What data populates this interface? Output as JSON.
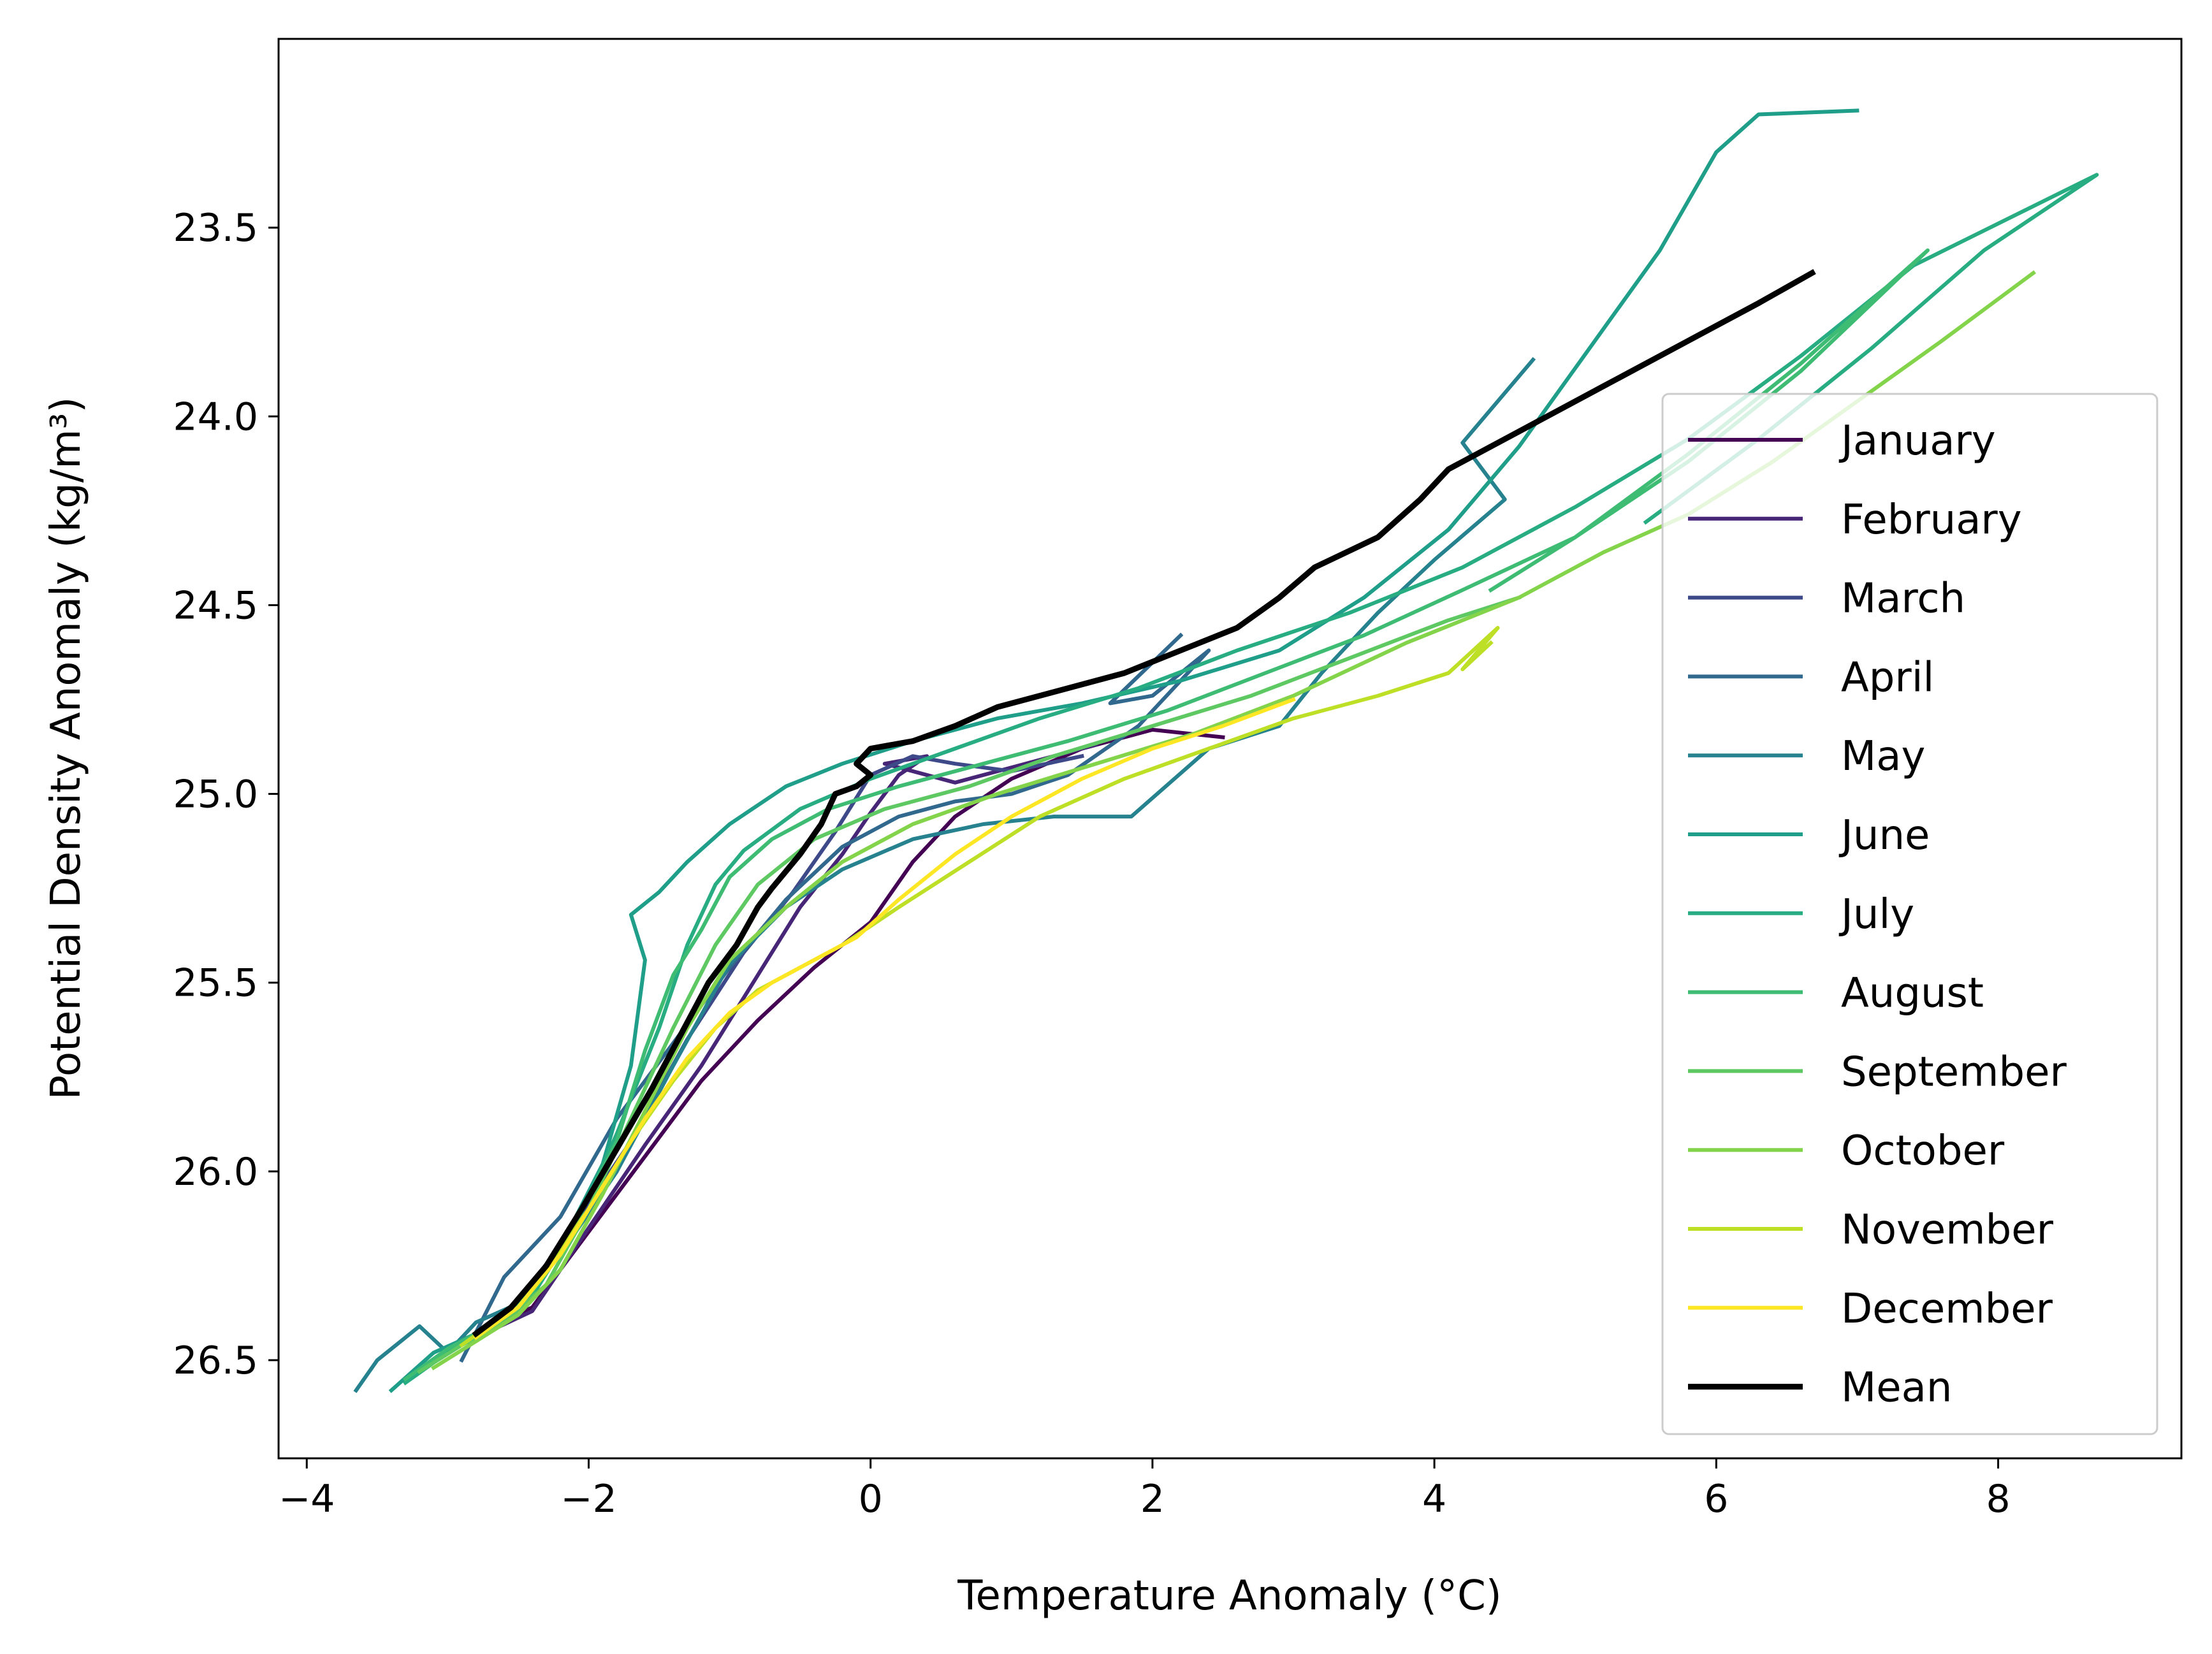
{
  "chart_data": {
    "type": "line",
    "title": "",
    "xlabel": "Temperature Anomaly (°C)",
    "ylabel": "Potential Density Anomaly (kg/m³)",
    "xlim": [
      -4.2,
      9.3
    ],
    "ylim": [
      26.76,
      23.0
    ],
    "y_inverted": true,
    "grid": false,
    "legend_position": "lower right",
    "x_ticks": [
      -4,
      -2,
      0,
      2,
      4,
      6,
      8
    ],
    "x_tick_labels": [
      "−4",
      "−2",
      "0",
      "2",
      "4",
      "6",
      "8"
    ],
    "y_ticks": [
      23.5,
      24.0,
      24.5,
      25.0,
      25.5,
      26.0,
      26.5
    ],
    "y_tick_labels": [
      "23.5",
      "24.0",
      "24.5",
      "25.0",
      "25.5",
      "26.0",
      "26.5"
    ],
    "series": [
      {
        "name": "January",
        "color": "#440154",
        "x": [
          -2.8,
          -2.4,
          -2.0,
          -1.6,
          -1.2,
          -0.8,
          -0.4,
          0.0,
          0.3,
          0.6,
          1.0,
          1.5,
          2.0,
          2.5
        ],
        "y": [
          26.43,
          26.36,
          26.16,
          25.96,
          25.76,
          25.6,
          25.46,
          25.34,
          25.18,
          25.06,
          24.96,
          24.88,
          24.83,
          24.85
        ]
      },
      {
        "name": "February",
        "color": "#482677",
        "x": [
          -2.8,
          -2.4,
          -2.0,
          -1.6,
          -1.2,
          -0.8,
          -0.5,
          -0.2,
          0.0,
          0.2,
          0.4,
          0.1,
          0.6,
          1.0,
          1.6
        ],
        "y": [
          26.44,
          26.37,
          26.15,
          25.93,
          25.72,
          25.48,
          25.3,
          25.16,
          25.05,
          24.95,
          24.9,
          24.92,
          24.97,
          24.93,
          24.87
        ]
      },
      {
        "name": "March",
        "color": "#3e4989",
        "x": [
          -2.85,
          -2.5,
          -2.1,
          -1.7,
          -1.3,
          -0.9,
          -0.55,
          -0.25,
          0.0,
          0.3,
          0.6,
          1.0,
          1.5
        ],
        "y": [
          26.45,
          26.35,
          26.14,
          25.92,
          25.65,
          25.42,
          25.26,
          25.1,
          24.95,
          24.9,
          24.92,
          24.94,
          24.9
        ]
      },
      {
        "name": "April",
        "color": "#31688e",
        "x": [
          -2.9,
          -2.6,
          -2.2,
          -1.8,
          -1.4,
          -1.0,
          -0.6,
          -0.2,
          0.2,
          0.6,
          1.0,
          1.4,
          1.9,
          2.4,
          2.0,
          1.7,
          2.2
        ],
        "y": [
          26.5,
          26.28,
          26.12,
          25.86,
          25.66,
          25.46,
          25.28,
          25.14,
          25.06,
          25.02,
          25.0,
          24.95,
          24.82,
          24.62,
          24.74,
          24.76,
          24.58
        ]
      },
      {
        "name": "May",
        "color": "#26828e",
        "x": [
          -3.65,
          -3.5,
          -3.2,
          -3.0,
          -2.8,
          -2.5,
          -2.2,
          -1.8,
          -1.4,
          -1.0,
          -0.6,
          -0.2,
          0.3,
          0.8,
          1.3,
          1.85,
          2.4,
          2.9,
          3.2,
          3.6,
          4.0,
          4.5,
          4.2,
          4.7
        ],
        "y": [
          26.58,
          26.5,
          26.41,
          26.48,
          26.4,
          26.35,
          26.22,
          26.0,
          25.72,
          25.45,
          25.3,
          25.2,
          25.12,
          25.08,
          25.06,
          25.06,
          24.88,
          24.82,
          24.68,
          24.52,
          24.38,
          24.22,
          24.07,
          23.85
        ]
      },
      {
        "name": "June",
        "color": "#1f9e89",
        "x": [
          -3.4,
          -3.1,
          -2.8,
          -2.5,
          -2.2,
          -1.9,
          -1.7,
          -1.6,
          -1.7,
          -1.5,
          -1.3,
          -1.0,
          -0.6,
          -0.2,
          0.3,
          0.9,
          1.5,
          2.2,
          2.9,
          3.5,
          4.1,
          4.6,
          5.1,
          5.6,
          6.0,
          6.3,
          7.0
        ],
        "y": [
          26.58,
          26.48,
          26.43,
          26.36,
          26.2,
          25.98,
          25.72,
          25.44,
          25.32,
          25.26,
          25.18,
          25.08,
          24.98,
          24.92,
          24.86,
          24.8,
          24.76,
          24.7,
          24.62,
          24.48,
          24.3,
          24.08,
          23.82,
          23.56,
          23.3,
          23.2,
          23.19
        ]
      },
      {
        "name": "July",
        "color": "#27ad81",
        "x": [
          -3.3,
          -3.0,
          -2.7,
          -2.4,
          -2.1,
          -1.8,
          -1.5,
          -1.3,
          -1.1,
          -0.9,
          -0.5,
          0.0,
          0.6,
          1.2,
          1.9,
          2.6,
          3.4,
          4.2,
          5.0,
          5.8,
          6.6,
          7.4,
          8.7,
          7.9,
          7.1,
          6.3,
          5.5
        ],
        "y": [
          26.56,
          26.48,
          26.42,
          26.33,
          26.15,
          25.9,
          25.62,
          25.4,
          25.24,
          25.15,
          25.04,
          24.96,
          24.88,
          24.8,
          24.72,
          24.62,
          24.52,
          24.4,
          24.24,
          24.06,
          23.84,
          23.6,
          23.36,
          23.56,
          23.82,
          24.06,
          24.28
        ]
      },
      {
        "name": "August",
        "color": "#3fbc73",
        "x": [
          -3.3,
          -3.0,
          -2.7,
          -2.4,
          -2.1,
          -1.8,
          -1.6,
          -1.4,
          -1.2,
          -1.0,
          -0.7,
          -0.3,
          0.2,
          0.8,
          1.4,
          2.1,
          2.8,
          3.5,
          4.2,
          5.0,
          5.8,
          6.6,
          7.5,
          6.6,
          5.8,
          5.0,
          4.4
        ],
        "y": [
          26.55,
          26.47,
          26.41,
          26.32,
          26.14,
          25.92,
          25.68,
          25.48,
          25.36,
          25.22,
          25.12,
          25.04,
          24.98,
          24.92,
          24.86,
          24.78,
          24.68,
          24.58,
          24.46,
          24.32,
          24.12,
          23.88,
          23.56,
          23.86,
          24.1,
          24.32,
          24.46
        ]
      },
      {
        "name": "September",
        "color": "#5ec962",
        "x": [
          -3.2,
          -2.9,
          -2.6,
          -2.3,
          -2.0,
          -1.7,
          -1.4,
          -1.1,
          -0.8,
          -0.4,
          0.1,
          0.7,
          1.3,
          2.0,
          2.7,
          3.4,
          4.1,
          4.6
        ],
        "y": [
          26.53,
          26.46,
          26.4,
          26.3,
          26.1,
          25.86,
          25.62,
          25.4,
          25.24,
          25.12,
          25.04,
          24.98,
          24.9,
          24.82,
          24.74,
          24.64,
          24.54,
          24.48
        ]
      },
      {
        "name": "October",
        "color": "#84d44b",
        "x": [
          -3.1,
          -2.8,
          -2.5,
          -2.2,
          -1.9,
          -1.6,
          -1.3,
          -1.0,
          -0.6,
          -0.2,
          0.3,
          0.9,
          1.6,
          2.3,
          3.0,
          3.8,
          4.6,
          5.2,
          5.8,
          6.4,
          7.0,
          7.6,
          8.25
        ],
        "y": [
          26.52,
          26.45,
          26.38,
          26.26,
          26.06,
          25.84,
          25.62,
          25.44,
          25.3,
          25.18,
          25.08,
          25.0,
          24.92,
          24.84,
          24.74,
          24.6,
          24.48,
          24.36,
          24.26,
          24.12,
          23.96,
          23.8,
          23.62
        ]
      },
      {
        "name": "November",
        "color": "#bddf26",
        "x": [
          -2.9,
          -2.6,
          -2.3,
          -2.0,
          -1.7,
          -1.4,
          -1.1,
          -0.8,
          -0.5,
          -0.2,
          0.2,
          0.7,
          1.2,
          1.8,
          2.4,
          3.0,
          3.6,
          4.1,
          4.45,
          4.2,
          4.4
        ],
        "y": [
          26.46,
          26.38,
          26.26,
          26.1,
          25.92,
          25.76,
          25.62,
          25.52,
          25.46,
          25.4,
          25.3,
          25.18,
          25.06,
          24.96,
          24.88,
          24.8,
          24.74,
          24.68,
          24.56,
          24.67,
          24.6
        ]
      },
      {
        "name": "December",
        "color": "#fde725",
        "x": [
          -2.8,
          -2.5,
          -2.2,
          -1.9,
          -1.6,
          -1.3,
          -1.0,
          -0.7,
          -0.4,
          -0.1,
          0.2,
          0.6,
          1.0,
          1.5,
          2.0,
          2.5,
          3.0
        ],
        "y": [
          26.44,
          26.36,
          26.22,
          26.04,
          25.86,
          25.7,
          25.58,
          25.5,
          25.44,
          25.38,
          25.28,
          25.16,
          25.06,
          24.96,
          24.88,
          24.82,
          24.75
        ]
      },
      {
        "name": "Mean",
        "color": "#000000",
        "x": [
          -2.8,
          -2.55,
          -2.3,
          -2.05,
          -1.8,
          -1.55,
          -1.35,
          -1.15,
          -0.95,
          -0.8,
          -0.7,
          -0.5,
          -0.35,
          -0.25,
          -0.1,
          0.0,
          -0.1,
          0.0,
          0.3,
          0.6,
          0.9,
          1.3,
          1.8,
          2.2,
          2.6,
          2.9,
          3.15,
          3.6,
          3.9,
          4.1,
          4.6,
          5.2,
          5.8,
          6.3,
          6.68
        ],
        "y": [
          26.43,
          26.36,
          26.25,
          26.1,
          25.94,
          25.78,
          25.64,
          25.5,
          25.4,
          25.3,
          25.25,
          25.16,
          25.08,
          25.0,
          24.98,
          24.95,
          24.92,
          24.88,
          24.86,
          24.82,
          24.77,
          24.73,
          24.68,
          24.62,
          24.56,
          24.48,
          24.4,
          24.32,
          24.22,
          24.14,
          24.04,
          23.92,
          23.8,
          23.7,
          23.62
        ]
      }
    ]
  }
}
